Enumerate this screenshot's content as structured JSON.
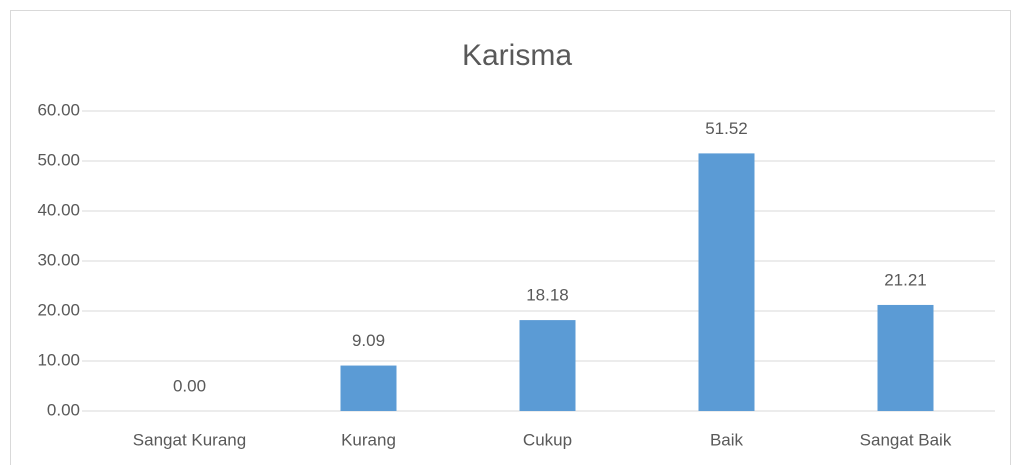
{
  "chart_data": {
    "type": "bar",
    "title": "Karisma",
    "categories": [
      "Sangat Kurang",
      "Kurang",
      "Cukup",
      "Baik",
      "Sangat Baik"
    ],
    "values": [
      0,
      9.09,
      18.18,
      51.52,
      21.21
    ],
    "value_labels": [
      "0.00",
      "9.09",
      "18.18",
      "51.52",
      "21.21"
    ],
    "color": "#5b9bd5",
    "ylim": [
      0,
      60
    ],
    "yticks": [
      {
        "value": 0,
        "label": "0.00"
      },
      {
        "value": 10,
        "label": "10.00"
      },
      {
        "value": 20,
        "label": "20.00"
      },
      {
        "value": 30,
        "label": "30.00"
      },
      {
        "value": 40,
        "label": "40.00"
      },
      {
        "value": 50,
        "label": "50.00"
      },
      {
        "value": 60,
        "label": "60.00"
      }
    ],
    "grid": true
  }
}
